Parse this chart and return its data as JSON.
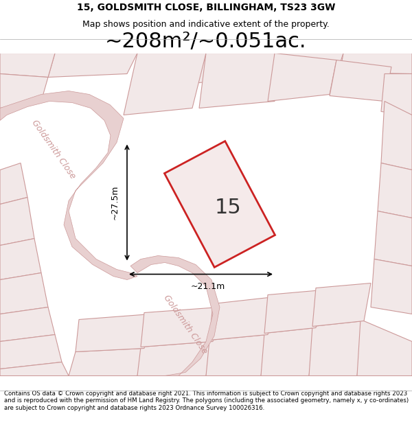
{
  "title_line1": "15, GOLDSMITH CLOSE, BILLINGHAM, TS23 3GW",
  "title_line2": "Map shows position and indicative extent of the property.",
  "area_text": "~208m²/~0.051ac.",
  "property_number": "15",
  "dim_height": "~27.5m",
  "dim_width": "~21.1m",
  "footer_text": "Contains OS data © Crown copyright and database right 2021. This information is subject to Crown copyright and database rights 2023 and is reproduced with the permission of HM Land Registry. The polygons (including the associated geometry, namely x, y co-ordinates) are subject to Crown copyright and database rights 2023 Ordnance Survey 100026316.",
  "bg_color": "#f5f0f0",
  "map_bg_color": "#f0e8e8",
  "road_color": "#e8c8c8",
  "property_color": "#cc2222",
  "dim_color": "#222222",
  "street_label": "Goldsmith Close",
  "street_label2": "Goldsmith Close"
}
